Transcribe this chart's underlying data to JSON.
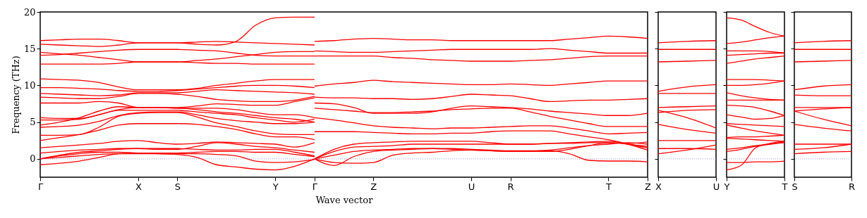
{
  "chart_data": [
    {
      "type": "line",
      "xlabel": "Wave vector",
      "ylabel": "Frequency (THz)",
      "ylim": [
        -2.5,
        20
      ],
      "yticks": [
        0,
        5,
        10,
        15,
        20
      ],
      "categories": [
        "Γ",
        null,
        null,
        null,
        null,
        "X",
        null,
        "S",
        null,
        null,
        null,
        null,
        "Y",
        null,
        "Γ",
        null,
        null,
        "Z",
        null,
        null,
        null,
        null,
        "U",
        null,
        "R",
        null,
        null,
        null,
        null,
        "T",
        null,
        "Z"
      ],
      "ref_lines": [
        {
          "axis": "y",
          "value": 0,
          "color": "#7777ee",
          "line_style": "dotted"
        }
      ],
      "series": [
        {
          "color": "#ff0000",
          "values": [
            16.1,
            16.2,
            16.3,
            16.3,
            16.1,
            15.8,
            15.8,
            15.8,
            15.9,
            16.0,
            15.9,
            15.8,
            15.7,
            15.6,
            15.5,
            null,
            null,
            null,
            null,
            null,
            null,
            null,
            null,
            null,
            null,
            null,
            null,
            null,
            null,
            null,
            null,
            null
          ]
        },
        {
          "color": "#ff0000",
          "values": [
            15.6,
            15.5,
            15.4,
            15.3,
            15.5,
            15.8,
            15.8,
            15.8,
            15.6,
            15.5,
            16.0,
            18.2,
            19.2,
            19.3,
            19.3,
            null,
            null,
            null,
            null,
            null,
            null,
            null,
            null,
            null,
            null,
            null,
            null,
            null,
            null,
            null,
            null,
            null
          ]
        },
        {
          "color": "#ff0000",
          "values": [
            14.5,
            14.3,
            14.1,
            13.8,
            13.5,
            13.2,
            13.2,
            13.2,
            13.4,
            13.6,
            13.9,
            14.2,
            14.5,
            14.6,
            14.6,
            null,
            null,
            null,
            null,
            null,
            null,
            null,
            null,
            null,
            null,
            null,
            null,
            null,
            null,
            null,
            null,
            null
          ]
        },
        {
          "color": "#ff0000",
          "values": [
            14.1,
            14.2,
            14.4,
            14.6,
            14.8,
            14.9,
            14.9,
            14.9,
            14.8,
            14.7,
            14.4,
            14.1,
            14.0,
            14.0,
            14.0,
            null,
            null,
            null,
            null,
            null,
            null,
            null,
            null,
            null,
            null,
            null,
            null,
            null,
            null,
            null,
            null,
            null
          ]
        },
        {
          "color": "#ff0000",
          "values": [
            12.9,
            12.9,
            12.9,
            12.9,
            13.0,
            13.2,
            13.2,
            13.2,
            13.1,
            13.0,
            13.0,
            12.9,
            12.9,
            12.9,
            12.9,
            null,
            null,
            null,
            null,
            null,
            null,
            null,
            null,
            null,
            null,
            null,
            null,
            null,
            null,
            null,
            null,
            null
          ]
        },
        {
          "color": "#ff0000",
          "values": [
            10.9,
            10.8,
            10.7,
            10.4,
            9.8,
            9.4,
            9.4,
            9.4,
            9.6,
            10.0,
            10.3,
            10.6,
            10.8,
            10.8,
            10.8,
            null,
            null,
            null,
            null,
            null,
            null,
            null,
            null,
            null,
            null,
            null,
            null,
            null,
            null,
            null,
            null,
            null
          ]
        },
        {
          "color": "#ff0000",
          "values": [
            9.7,
            9.7,
            9.6,
            9.5,
            9.3,
            9.2,
            9.2,
            9.3,
            9.5,
            9.7,
            9.9,
            10.0,
            10.0,
            9.9,
            9.7,
            null,
            null,
            null,
            null,
            null,
            null,
            null,
            null,
            null,
            null,
            null,
            null,
            null,
            null,
            null,
            null,
            null
          ]
        },
        {
          "color": "#ff0000",
          "values": [
            8.9,
            8.8,
            8.7,
            8.6,
            8.7,
            9.0,
            9.0,
            9.0,
            9.2,
            9.4,
            9.3,
            9.2,
            9.1,
            9.0,
            8.8,
            null,
            null,
            null,
            null,
            null,
            null,
            null,
            null,
            null,
            null,
            null,
            null,
            null,
            null,
            null,
            null,
            null
          ]
        },
        {
          "color": "#ff0000",
          "values": [
            8.4,
            8.3,
            8.2,
            8.2,
            8.5,
            8.9,
            8.9,
            8.8,
            8.5,
            8.1,
            7.9,
            7.8,
            7.8,
            8.0,
            8.5,
            null,
            null,
            null,
            null,
            null,
            null,
            null,
            null,
            null,
            null,
            null,
            null,
            null,
            null,
            null,
            null,
            null
          ]
        },
        {
          "color": "#ff0000",
          "values": [
            7.6,
            7.6,
            7.6,
            7.8,
            7.6,
            7.0,
            7.0,
            7.0,
            7.2,
            7.5,
            7.4,
            7.3,
            7.3,
            7.8,
            8.3,
            null,
            null,
            null,
            null,
            null,
            null,
            null,
            null,
            null,
            null,
            null,
            null,
            null,
            null,
            null,
            null,
            null
          ]
        },
        {
          "color": "#ff0000",
          "values": [
            5.6,
            5.5,
            5.5,
            6.0,
            6.7,
            7.0,
            7.0,
            6.9,
            6.9,
            6.9,
            6.7,
            6.3,
            6.0,
            6.0,
            5.6,
            null,
            null,
            null,
            null,
            null,
            null,
            null,
            null,
            null,
            null,
            null,
            null,
            null,
            null,
            null,
            null,
            null
          ]
        },
        {
          "color": "#ff0000",
          "values": [
            5.3,
            5.3,
            5.4,
            6.0,
            6.6,
            6.6,
            6.6,
            6.6,
            6.4,
            6.2,
            6.0,
            5.6,
            5.3,
            5.0,
            5.4,
            null,
            null,
            null,
            null,
            null,
            null,
            null,
            null,
            null,
            null,
            null,
            null,
            null,
            null,
            null,
            null,
            null
          ]
        },
        {
          "color": "#ff0000",
          "values": [
            4.6,
            5.0,
            5.6,
            6.5,
            7.1,
            7.0,
            7.0,
            6.9,
            6.7,
            6.4,
            6.2,
            5.9,
            5.6,
            5.4,
            5.0,
            null,
            null,
            null,
            null,
            null,
            null,
            null,
            null,
            null,
            null,
            null,
            null,
            null,
            null,
            null,
            null,
            null
          ]
        },
        {
          "color": "#ff0000",
          "values": [
            4.3,
            4.4,
            4.6,
            5.1,
            5.9,
            6.3,
            6.4,
            6.4,
            6.0,
            5.5,
            5.2,
            5.0,
            4.8,
            4.8,
            5.0,
            null,
            null,
            null,
            null,
            null,
            null,
            null,
            null,
            null,
            null,
            null,
            null,
            null,
            null,
            null,
            null,
            null
          ]
        },
        {
          "color": "#ff0000",
          "values": [
            3.2,
            3.2,
            3.3,
            4.3,
            5.8,
            6.2,
            6.3,
            6.3,
            5.7,
            4.9,
            4.4,
            3.8,
            3.4,
            3.3,
            3.3,
            null,
            null,
            null,
            null,
            null,
            null,
            null,
            null,
            null,
            null,
            null,
            null,
            null,
            null,
            null,
            null,
            null
          ]
        },
        {
          "color": "#ff0000",
          "values": [
            2.5,
            2.9,
            3.3,
            3.9,
            4.6,
            4.8,
            4.8,
            4.8,
            4.7,
            4.4,
            4.0,
            3.4,
            3.0,
            3.0,
            2.6,
            null,
            null,
            null,
            null,
            null,
            null,
            null,
            null,
            null,
            null,
            null,
            null,
            null,
            null,
            null,
            null,
            null
          ]
        },
        {
          "color": "#ff0000",
          "values": [
            1.5,
            1.7,
            1.9,
            2.1,
            2.4,
            2.5,
            2.2,
            2.0,
            2.1,
            2.3,
            2.2,
            2.1,
            2.0,
            1.6,
            2.2,
            null,
            null,
            null,
            null,
            null,
            null,
            null,
            null,
            null,
            null,
            null,
            null,
            null,
            null,
            null,
            null,
            null
          ]
        },
        {
          "color": "#ff0000",
          "values": [
            0.8,
            1.0,
            1.2,
            1.3,
            1.4,
            1.4,
            1.4,
            1.4,
            1.3,
            1.2,
            1.2,
            1.3,
            1.3,
            0.9,
            0.4,
            null,
            null,
            null,
            null,
            null,
            null,
            null,
            null,
            null,
            null,
            null,
            null,
            null,
            null,
            null,
            null,
            null
          ]
        },
        {
          "color": "#ff0000",
          "values": [
            0.0,
            0.5,
            0.9,
            1.1,
            1.3,
            1.4,
            1.3,
            1.3,
            1.7,
            2.2,
            2.0,
            1.7,
            1.5,
            1.2,
            0.9,
            null,
            null,
            null,
            null,
            null,
            null,
            null,
            null,
            null,
            null,
            null,
            null,
            null,
            null,
            null,
            null,
            null
          ]
        },
        {
          "color": "#ff0000",
          "values": [
            0.0,
            0.4,
            0.7,
            0.9,
            0.9,
            0.8,
            0.8,
            0.8,
            0.9,
            1.0,
            1.0,
            0.9,
            0.9,
            0.6,
            0.3,
            null,
            null,
            null,
            null,
            null,
            null,
            null,
            null,
            null,
            null,
            null,
            null,
            null,
            null,
            null,
            null,
            null
          ]
        },
        {
          "color": "#ff0000",
          "values": [
            0.0,
            0.2,
            0.4,
            0.6,
            0.7,
            0.7,
            0.7,
            0.7,
            0.7,
            0.6,
            0.4,
            -0.3,
            -0.5,
            -0.4,
            -0.1,
            null,
            null,
            null,
            null,
            null,
            null,
            null,
            null,
            null,
            null,
            null,
            null,
            null,
            null,
            null,
            null,
            null
          ]
        },
        {
          "color": "#ff0000",
          "values": [
            -0.8,
            -0.6,
            -0.3,
            0.2,
            0.7,
            0.8,
            0.7,
            0.6,
            0.2,
            -0.8,
            -1.1,
            -1.4,
            -1.5,
            -1.0,
            0.0,
            null,
            null,
            null,
            null,
            null,
            null,
            null,
            null,
            null,
            null,
            null,
            null,
            null,
            null,
            null,
            null,
            null
          ]
        },
        {
          "color": "#ff0000",
          "values": [
            null,
            null,
            null,
            null,
            null,
            null,
            null,
            null,
            null,
            null,
            null,
            null,
            null,
            null,
            16.0,
            16.1,
            16.3,
            16.4,
            16.3,
            16.2,
            16.2,
            16.1,
            16.1,
            16.1,
            16.1,
            16.1,
            16.1,
            16.3,
            16.5,
            16.7,
            16.6,
            16.4
          ]
        },
        {
          "color": "#ff0000",
          "values": [
            null,
            null,
            null,
            null,
            null,
            null,
            null,
            null,
            null,
            null,
            null,
            null,
            null,
            null,
            14.7,
            14.6,
            14.5,
            14.5,
            14.6,
            14.7,
            14.8,
            14.9,
            14.9,
            14.9,
            14.9,
            14.9,
            15.0,
            14.8,
            14.6,
            14.4,
            14.4,
            14.4
          ]
        },
        {
          "color": "#ff0000",
          "values": [
            null,
            null,
            null,
            null,
            null,
            null,
            null,
            null,
            null,
            null,
            null,
            null,
            null,
            null,
            14.0,
            14.0,
            14.0,
            14.0,
            13.8,
            13.7,
            13.5,
            13.4,
            13.3,
            13.3,
            13.3,
            13.4,
            13.5,
            13.7,
            13.9,
            14.0,
            14.0,
            14.0
          ]
        },
        {
          "color": "#ff0000",
          "values": [
            null,
            null,
            null,
            null,
            null,
            null,
            null,
            null,
            null,
            null,
            null,
            null,
            null,
            null,
            9.9,
            10.2,
            10.4,
            10.7,
            10.5,
            10.4,
            10.3,
            10.2,
            10.1,
            10.1,
            10.2,
            10.1,
            10.0,
            10.2,
            10.4,
            10.6,
            10.6,
            10.6
          ]
        },
        {
          "color": "#ff0000",
          "values": [
            null,
            null,
            null,
            null,
            null,
            null,
            null,
            null,
            null,
            null,
            null,
            null,
            null,
            null,
            8.4,
            8.3,
            8.3,
            8.2,
            8.2,
            8.1,
            8.2,
            8.5,
            8.8,
            8.7,
            8.6,
            8.2,
            7.8,
            7.9,
            8.0,
            8.0,
            8.1,
            8.2
          ]
        },
        {
          "color": "#ff0000",
          "values": [
            null,
            null,
            null,
            null,
            null,
            null,
            null,
            null,
            null,
            null,
            null,
            null,
            null,
            null,
            7.6,
            7.5,
            7.0,
            6.2,
            6.2,
            6.2,
            6.4,
            6.9,
            7.2,
            7.1,
            7.0,
            6.8,
            6.5,
            6.3,
            6.1,
            5.9,
            5.9,
            6.2
          ]
        },
        {
          "color": "#ff0000",
          "values": [
            null,
            null,
            null,
            null,
            null,
            null,
            null,
            null,
            null,
            null,
            null,
            null,
            null,
            null,
            6.9,
            6.7,
            6.5,
            6.3,
            6.3,
            6.4,
            6.5,
            6.7,
            6.8,
            6.9,
            6.9,
            6.4,
            5.8,
            5.3,
            4.8,
            4.4,
            4.4,
            4.4
          ]
        },
        {
          "color": "#ff0000",
          "values": [
            null,
            null,
            null,
            null,
            null,
            null,
            null,
            null,
            null,
            null,
            null,
            null,
            null,
            null,
            5.6,
            5.3,
            4.9,
            4.5,
            4.3,
            4.2,
            4.1,
            4.2,
            4.2,
            4.3,
            4.4,
            4.5,
            4.5,
            4.2,
            3.8,
            3.4,
            3.5,
            3.6
          ]
        },
        {
          "color": "#ff0000",
          "values": [
            null,
            null,
            null,
            null,
            null,
            null,
            null,
            null,
            null,
            null,
            null,
            null,
            null,
            null,
            3.7,
            3.7,
            3.7,
            3.6,
            3.5,
            3.4,
            3.4,
            3.5,
            3.5,
            3.7,
            3.8,
            3.8,
            3.8,
            3.4,
            3.0,
            2.6,
            2.0,
            1.2
          ]
        },
        {
          "color": "#ff0000",
          "values": [
            null,
            null,
            null,
            null,
            null,
            null,
            null,
            null,
            null,
            null,
            null,
            null,
            null,
            null,
            0.0,
            1.3,
            2.0,
            2.2,
            2.3,
            2.4,
            2.4,
            2.4,
            2.4,
            2.2,
            2.0,
            2.0,
            2.1,
            2.1,
            2.2,
            2.2,
            2.1,
            2.3
          ]
        },
        {
          "color": "#ff0000",
          "values": [
            null,
            null,
            null,
            null,
            null,
            null,
            null,
            null,
            null,
            null,
            null,
            null,
            null,
            null,
            0.0,
            1.0,
            1.6,
            1.7,
            1.8,
            2.0,
            2.0,
            2.0,
            2.0,
            2.0,
            2.0,
            2.0,
            2.1,
            2.2,
            2.3,
            2.4,
            2.0,
            1.7
          ]
        },
        {
          "color": "#ff0000",
          "values": [
            null,
            null,
            null,
            null,
            null,
            null,
            null,
            null,
            null,
            null,
            null,
            null,
            null,
            null,
            0.0,
            0.5,
            1.0,
            1.2,
            1.3,
            1.4,
            1.4,
            1.3,
            1.2,
            1.1,
            1.0,
            1.0,
            1.1,
            0.7,
            -0.2,
            -0.3,
            -0.3,
            -0.4
          ]
        },
        {
          "color": "#ff0000",
          "values": [
            null,
            null,
            null,
            null,
            null,
            null,
            null,
            null,
            null,
            null,
            null,
            null,
            null,
            null,
            0.0,
            -0.5,
            -0.6,
            -0.5,
            0.5,
            0.8,
            0.9,
            1.1,
            1.2,
            1.1,
            1.0,
            1.0,
            1.0,
            1.3,
            1.8,
            2.2,
            2.0,
            1.5
          ]
        },
        {
          "color": "#ff0000",
          "values": [
            null,
            null,
            null,
            null,
            null,
            null,
            null,
            null,
            null,
            null,
            null,
            null,
            null,
            null,
            0.0,
            -0.9,
            0.3,
            1.0,
            1.2,
            1.3,
            1.4,
            1.4,
            1.3,
            1.2,
            1.1,
            1.1,
            1.2,
            1.5,
            1.8,
            2.0,
            2.2,
            2.0
          ]
        }
      ]
    },
    {
      "type": "line",
      "tick_labels": "x",
      "ylim": [
        -2.5,
        20
      ],
      "yticks": [
        0,
        5,
        10,
        15,
        20
      ],
      "categories": [
        "X",
        null,
        "U"
      ],
      "ref_lines": [
        {
          "axis": "y",
          "value": 0,
          "color": "#7777ee",
          "line_style": "dotted"
        }
      ],
      "series": [
        {
          "color": "#ff0000",
          "values": [
            15.8,
            16.0,
            16.1
          ]
        },
        {
          "color": "#ff0000",
          "values": [
            14.9,
            14.9,
            14.9
          ]
        },
        {
          "color": "#ff0000",
          "values": [
            13.2,
            13.3,
            13.4
          ]
        },
        {
          "color": "#ff0000",
          "values": [
            9.2,
            9.8,
            10.1
          ]
        },
        {
          "color": "#ff0000",
          "values": [
            8.9,
            8.9,
            8.9
          ]
        },
        {
          "color": "#ff0000",
          "values": [
            7.0,
            7.1,
            7.2
          ]
        },
        {
          "color": "#ff0000",
          "values": [
            6.3,
            6.6,
            6.7
          ]
        },
        {
          "color": "#ff0000",
          "values": [
            6.6,
            5.6,
            4.2
          ]
        },
        {
          "color": "#ff0000",
          "values": [
            4.7,
            4.0,
            3.5
          ]
        },
        {
          "color": "#ff0000",
          "values": [
            2.5,
            2.5,
            2.5
          ]
        },
        {
          "color": "#ff0000",
          "values": [
            1.4,
            1.4,
            1.3
          ]
        },
        {
          "color": "#ff0000",
          "values": [
            0.7,
            1.2,
            1.9
          ]
        }
      ]
    },
    {
      "type": "line",
      "tick_labels": "x",
      "ylim": [
        -2.5,
        20
      ],
      "yticks": [
        0,
        5,
        10,
        15,
        20
      ],
      "categories": [
        "Y",
        null,
        null,
        null,
        "T"
      ],
      "ref_lines": [
        {
          "axis": "y",
          "value": 0,
          "color": "#7777ee",
          "line_style": "dotted"
        }
      ],
      "series": [
        {
          "color": "#ff0000",
          "values": [
            19.2,
            18.9,
            18.0,
            17.2,
            16.7
          ]
        },
        {
          "color": "#ff0000",
          "values": [
            15.7,
            15.9,
            16.2,
            16.5,
            16.7
          ]
        },
        {
          "color": "#ff0000",
          "values": [
            14.7,
            14.7,
            14.7,
            14.6,
            14.4
          ]
        },
        {
          "color": "#ff0000",
          "values": [
            14.1,
            14.2,
            14.3,
            14.4,
            14.4
          ]
        },
        {
          "color": "#ff0000",
          "values": [
            13.0,
            13.3,
            13.6,
            13.8,
            14.0
          ]
        },
        {
          "color": "#ff0000",
          "values": [
            10.8,
            10.8,
            10.8,
            10.7,
            10.6
          ]
        },
        {
          "color": "#ff0000",
          "values": [
            10.0,
            10.0,
            10.1,
            10.3,
            10.6
          ]
        },
        {
          "color": "#ff0000",
          "values": [
            9.0,
            8.6,
            8.3,
            8.1,
            8.0
          ]
        },
        {
          "color": "#ff0000",
          "values": [
            8.0,
            8.0,
            8.0,
            8.0,
            8.0
          ]
        },
        {
          "color": "#ff0000",
          "values": [
            7.3,
            7.2,
            7.0,
            6.5,
            5.9
          ]
        },
        {
          "color": "#ff0000",
          "values": [
            6.0,
            5.7,
            5.4,
            5.5,
            5.9
          ]
        },
        {
          "color": "#ff0000",
          "values": [
            4.8,
            4.7,
            4.6,
            4.5,
            4.4
          ]
        },
        {
          "color": "#ff0000",
          "values": [
            4.6,
            4.2,
            3.8,
            3.5,
            3.2
          ]
        },
        {
          "color": "#ff0000",
          "values": [
            2.9,
            3.0,
            3.0,
            3.1,
            3.2
          ]
        },
        {
          "color": "#ff0000",
          "values": [
            2.8,
            2.7,
            2.6,
            2.5,
            2.4
          ]
        },
        {
          "color": "#ff0000",
          "values": [
            1.3,
            1.5,
            1.8,
            2.0,
            2.2
          ]
        },
        {
          "color": "#ff0000",
          "values": [
            1.0,
            1.3,
            1.7,
            2.0,
            2.3
          ]
        },
        {
          "color": "#ff0000",
          "values": [
            -1.5,
            -0.9,
            1.5,
            2.1,
            2.4
          ]
        },
        {
          "color": "#ff0000",
          "values": [
            -0.5,
            -0.5,
            -0.4,
            -0.4,
            -0.3
          ]
        }
      ]
    },
    {
      "type": "line",
      "tick_labels": "x",
      "ylim": [
        -2.5,
        20
      ],
      "yticks": [
        0,
        5,
        10,
        15,
        20
      ],
      "categories": [
        "S",
        null,
        "R"
      ],
      "ref_lines": [
        {
          "axis": "y",
          "value": 0,
          "color": "#7777ee",
          "line_style": "dotted"
        }
      ],
      "series": [
        {
          "color": "#ff0000",
          "values": [
            15.8,
            16.0,
            16.1
          ]
        },
        {
          "color": "#ff0000",
          "values": [
            14.9,
            14.9,
            14.9
          ]
        },
        {
          "color": "#ff0000",
          "values": [
            13.2,
            13.3,
            13.4
          ]
        },
        {
          "color": "#ff0000",
          "values": [
            9.4,
            9.9,
            10.1
          ]
        },
        {
          "color": "#ff0000",
          "values": [
            8.7,
            8.6,
            8.6
          ]
        },
        {
          "color": "#ff0000",
          "values": [
            7.0,
            7.0,
            7.0
          ]
        },
        {
          "color": "#ff0000",
          "values": [
            6.5,
            6.8,
            7.0
          ]
        },
        {
          "color": "#ff0000",
          "values": [
            6.5,
            5.4,
            4.5
          ]
        },
        {
          "color": "#ff0000",
          "values": [
            4.7,
            4.2,
            3.8
          ]
        },
        {
          "color": "#ff0000",
          "values": [
            2.0,
            2.0,
            2.0
          ]
        },
        {
          "color": "#ff0000",
          "values": [
            1.3,
            1.5,
            2.0
          ]
        },
        {
          "color": "#ff0000",
          "values": [
            0.7,
            0.9,
            1.0
          ]
        }
      ]
    }
  ]
}
